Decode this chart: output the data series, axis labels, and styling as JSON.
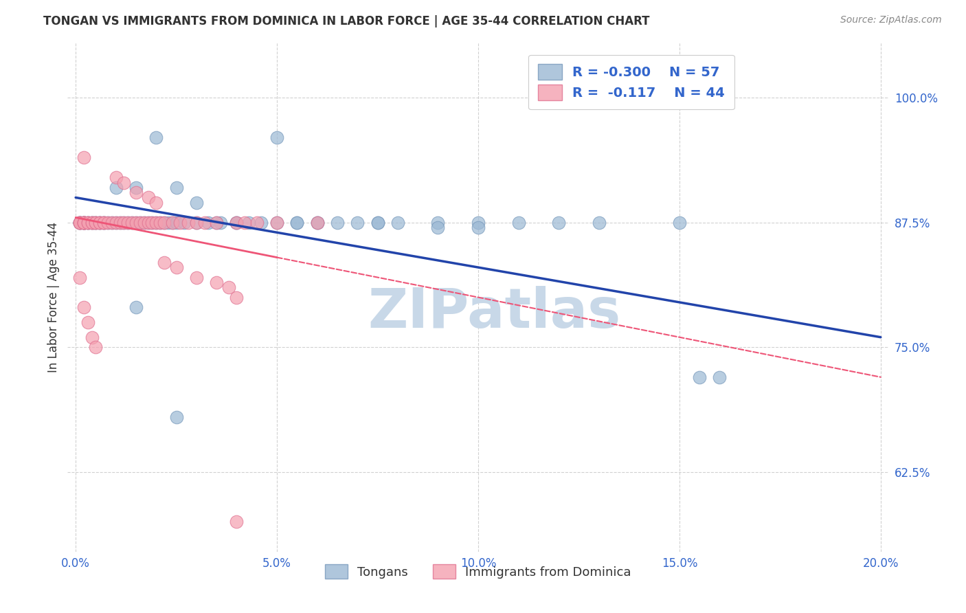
{
  "title": "TONGAN VS IMMIGRANTS FROM DOMINICA IN LABOR FORCE | AGE 35-44 CORRELATION CHART",
  "source": "Source: ZipAtlas.com",
  "ylabel": "In Labor Force | Age 35-44",
  "xlabel_ticks": [
    "0.0%",
    "5.0%",
    "10.0%",
    "15.0%",
    "20.0%"
  ],
  "xlabel_vals": [
    0.0,
    0.05,
    0.1,
    0.15,
    0.2
  ],
  "ylabel_ticks": [
    "62.5%",
    "75.0%",
    "87.5%",
    "100.0%"
  ],
  "ylabel_vals": [
    0.625,
    0.75,
    0.875,
    1.0
  ],
  "xlim": [
    -0.002,
    0.202
  ],
  "ylim": [
    0.545,
    1.055
  ],
  "legend_R_blue": "-0.300",
  "legend_N_blue": "57",
  "legend_R_pink": "-0.117",
  "legend_N_pink": "44",
  "legend_label_blue": "Tongans",
  "legend_label_pink": "Immigrants from Dominica",
  "blue_color": "#9BB8D4",
  "pink_color": "#F4A0B0",
  "blue_edge_color": "#7799BB",
  "pink_edge_color": "#E07090",
  "trendline_blue_color": "#2244AA",
  "trendline_pink_color": "#EE5577",
  "grid_color": "#CCCCCC",
  "watermark_color": "#C8D8E8",
  "text_color": "#333333",
  "axis_color": "#3366CC",
  "source_color": "#888888",
  "blue_x": [
    0.001,
    0.001,
    0.001,
    0.002,
    0.002,
    0.002,
    0.002,
    0.003,
    0.003,
    0.004,
    0.004,
    0.005,
    0.005,
    0.006,
    0.006,
    0.007,
    0.007,
    0.008,
    0.009,
    0.01,
    0.011,
    0.012,
    0.013,
    0.014,
    0.015,
    0.016,
    0.017,
    0.018,
    0.019,
    0.02,
    0.021,
    0.022,
    0.023,
    0.024,
    0.025,
    0.027,
    0.03,
    0.033,
    0.036,
    0.04,
    0.043,
    0.046,
    0.05,
    0.055,
    0.06,
    0.065,
    0.07,
    0.075,
    0.08,
    0.09,
    0.1,
    0.11,
    0.12,
    0.13,
    0.15,
    0.155,
    0.16
  ],
  "blue_y": [
    0.875,
    0.875,
    0.875,
    0.875,
    0.875,
    0.875,
    0.875,
    0.875,
    0.875,
    0.875,
    0.875,
    0.875,
    0.875,
    0.875,
    0.875,
    0.875,
    0.875,
    0.875,
    0.875,
    0.875,
    0.875,
    0.875,
    0.875,
    0.875,
    0.875,
    0.875,
    0.875,
    0.875,
    0.875,
    0.875,
    0.875,
    0.875,
    0.875,
    0.875,
    0.875,
    0.875,
    0.875,
    0.875,
    0.875,
    0.875,
    0.875,
    0.875,
    0.875,
    0.875,
    0.875,
    0.875,
    0.875,
    0.875,
    0.875,
    0.875,
    0.875,
    0.875,
    0.875,
    0.875,
    0.875,
    0.72,
    0.72
  ],
  "blue_outlier_x": [
    0.02,
    0.05,
    0.01,
    0.015,
    0.025,
    0.03,
    0.035,
    0.04,
    0.055,
    0.06,
    0.075,
    0.09,
    0.1,
    0.015,
    0.025
  ],
  "blue_outlier_y": [
    0.96,
    0.96,
    0.91,
    0.91,
    0.91,
    0.895,
    0.875,
    0.875,
    0.875,
    0.875,
    0.875,
    0.87,
    0.87,
    0.79,
    0.68
  ],
  "pink_x": [
    0.001,
    0.001,
    0.001,
    0.002,
    0.002,
    0.002,
    0.002,
    0.003,
    0.003,
    0.004,
    0.004,
    0.005,
    0.005,
    0.006,
    0.006,
    0.007,
    0.007,
    0.008,
    0.009,
    0.01,
    0.011,
    0.012,
    0.013,
    0.014,
    0.015,
    0.016,
    0.017,
    0.018,
    0.019,
    0.02,
    0.021,
    0.022,
    0.024,
    0.026,
    0.028,
    0.03,
    0.032,
    0.035,
    0.04,
    0.042,
    0.045,
    0.05,
    0.06
  ],
  "pink_y": [
    0.875,
    0.875,
    0.875,
    0.875,
    0.875,
    0.875,
    0.875,
    0.875,
    0.875,
    0.875,
    0.875,
    0.875,
    0.875,
    0.875,
    0.875,
    0.875,
    0.875,
    0.875,
    0.875,
    0.875,
    0.875,
    0.875,
    0.875,
    0.875,
    0.875,
    0.875,
    0.875,
    0.875,
    0.875,
    0.875,
    0.875,
    0.875,
    0.875,
    0.875,
    0.875,
    0.875,
    0.875,
    0.875,
    0.875,
    0.875,
    0.875,
    0.875,
    0.875
  ],
  "pink_outlier_x": [
    0.002,
    0.01,
    0.012,
    0.015,
    0.018,
    0.02,
    0.022,
    0.025,
    0.03,
    0.035,
    0.038,
    0.04,
    0.001,
    0.002,
    0.003,
    0.004,
    0.005,
    0.04
  ],
  "pink_outlier_y": [
    0.94,
    0.92,
    0.915,
    0.905,
    0.9,
    0.895,
    0.835,
    0.83,
    0.82,
    0.815,
    0.81,
    0.8,
    0.82,
    0.79,
    0.775,
    0.76,
    0.75,
    0.575
  ],
  "trendline_blue_x0": 0.0,
  "trendline_blue_y0": 0.9,
  "trendline_blue_x1": 0.2,
  "trendline_blue_y1": 0.76,
  "trendline_pink_solid_x0": 0.0,
  "trendline_pink_solid_y0": 0.88,
  "trendline_pink_solid_x1": 0.05,
  "trendline_pink_solid_y1": 0.84,
  "trendline_pink_dash_x1": 0.2,
  "trendline_pink_dash_y1": 0.72
}
